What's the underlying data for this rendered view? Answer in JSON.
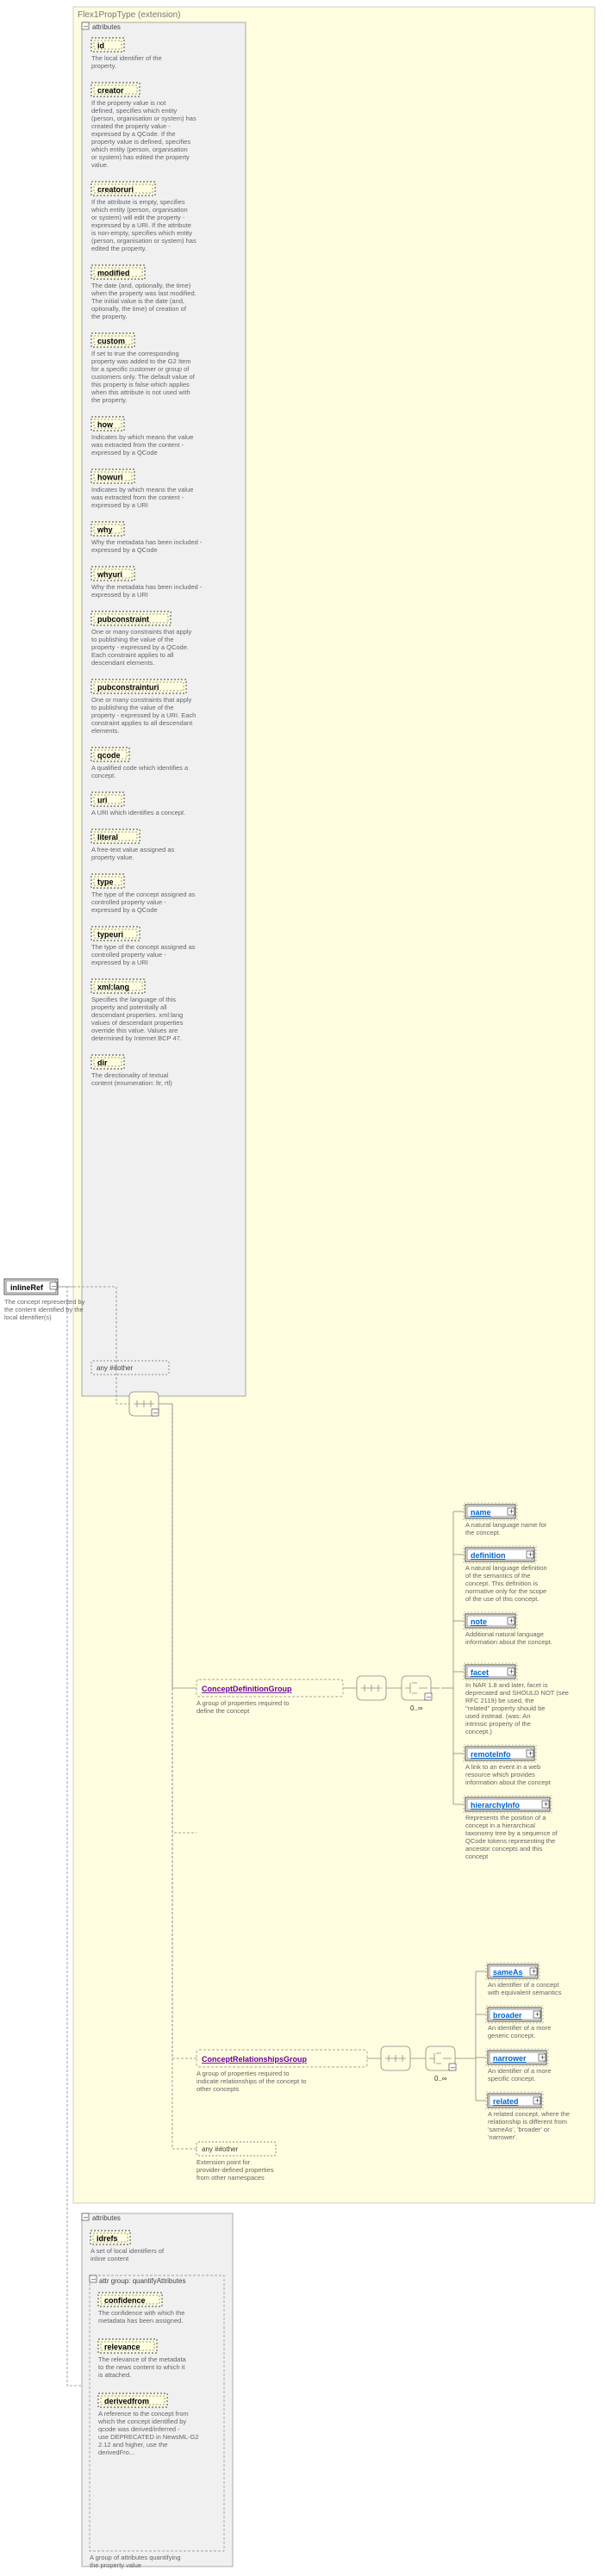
{
  "root": {
    "label": "inlineRef",
    "desc": "The concept represented by the content identified by the local identifier(s)"
  },
  "header": {
    "type": "Flex1PropType (extension)"
  },
  "attrHeader": "attributes",
  "attrs": [
    {
      "name": "id",
      "desc": "The local identifier of the property."
    },
    {
      "name": "creator",
      "desc": "If the property value is not defined, specifies which entity (person, organisation or system) has created the property value - expressed by a QCode. If the property value is defined, specifies which entity (person, organisation or system) has edited the property value."
    },
    {
      "name": "creatoruri",
      "desc": "If the attribute is empty, specifies which entity (person, organisation or system) will edit the property - expressed by a URI. If the attribute is non-empty, specifies which entity (person, organisation or system) has edited the property."
    },
    {
      "name": "modified",
      "desc": "The date (and, optionally, the time) when the property was last modified. The initial value is the date (and, optionally, the time) of creation of the property."
    },
    {
      "name": "custom",
      "desc": "If set to true the corresponding property was added to the G2 Item for a specific customer or group of customers only. The default value of this property is false which applies when this attribute is not used with the property."
    },
    {
      "name": "how",
      "desc": "Indicates by which means the value was extracted from the content - expressed by a QCode"
    },
    {
      "name": "howuri",
      "desc": "Indicates by which means the value was extracted from the content - expressed by a URI"
    },
    {
      "name": "why",
      "desc": "Why the metadata has been included - expressed by a QCode"
    },
    {
      "name": "whyuri",
      "desc": "Why the metadata has been included - expressed by a URI"
    },
    {
      "name": "pubconstraint",
      "desc": "One or many constraints that apply to publishing the value of the property - expressed by a QCode. Each constraint applies to all descendant elements."
    },
    {
      "name": "pubconstrainturi",
      "desc": "One or many constraints that apply to publishing the value of the property - expressed by a URI. Each constraint applies to all descendant elements."
    },
    {
      "name": "qcode",
      "desc": "A qualified code which identifies a concept."
    },
    {
      "name": "uri",
      "desc": "A URI which identifies a concept."
    },
    {
      "name": "literal",
      "desc": "A free-text value assigned as property value."
    },
    {
      "name": "type",
      "desc": "The type of the concept assigned as controlled property value - expressed by a QCode"
    },
    {
      "name": "typeuri",
      "desc": "The type of the concept assigned as controlled property value - expressed by a URI"
    },
    {
      "name": "xml:lang",
      "desc": "Specifies the language of this property and potentially all descendant properties. xml:lang values of descendant properties override this value. Values are determined by Internet BCP 47."
    },
    {
      "name": "dir",
      "desc": "The directionality of textual content (enumeration: ltr, rtl)"
    }
  ],
  "anyOther": "any ##other",
  "groups": [
    {
      "name": "ConceptDefinitionGroup",
      "desc": "A group of properties required to define the concept",
      "cardinal": "0..∞",
      "items": [
        {
          "name": "name",
          "desc": "A natural language name for the concept."
        },
        {
          "name": "definition",
          "desc": "A natural language definition of the semantics of the concept. This definition is normative only for the scope of the use of this concept."
        },
        {
          "name": "note",
          "desc": "Additional natural language information about the concept."
        },
        {
          "name": "facet",
          "desc": "In NAR 1.8 and later, facet is deprecated and SHOULD NOT (see RFC 2119) be used, the \"related\" property should be used instead. (was: An intrinsic property of the concept.)"
        },
        {
          "name": "remoteInfo",
          "desc": "A link to an event in a web resource which provides information about the concept"
        },
        {
          "name": "hierarchyInfo",
          "desc": "Represents the position of a concept in a hierarchical taxonomy tree by a sequence of QCode tokens representing the ancestor concepts and this concept"
        }
      ]
    },
    {
      "name": "ConceptRelationshipsGroup",
      "desc": "A group of properties required to indicate relationships of the concept to other concepts",
      "cardinal": "0..∞",
      "items": [
        {
          "name": "sameAs",
          "desc": "An identifier of a concept with equivalent semantics"
        },
        {
          "name": "broader",
          "desc": "An identifier of a more generic concept."
        },
        {
          "name": "narrower",
          "desc": "An identifier of a more specific concept."
        },
        {
          "name": "related",
          "desc": "A related concept, where the relationship is different from 'sameAs', 'broader' or 'narrower'."
        }
      ]
    }
  ],
  "extPoint": {
    "label": "any ##other",
    "desc": "Extension point for provider-defined properties from other namespaces"
  },
  "bottomBlock": {
    "header": "attributes",
    "idrefs": {
      "name": "idrefs",
      "desc": "A set of local identifiers of inline content"
    },
    "quant": {
      "header": "attr group: quantifyAttributes",
      "desc": "A group of attributes quantifying the property value",
      "items": [
        {
          "name": "confidence",
          "desc": "The confidence with which the metadata has been assigned."
        },
        {
          "name": "relevance",
          "desc": "The relevance of the metadata to the news content to which it is attached."
        },
        {
          "name": "derivedfrom",
          "desc": "A reference to the concept from which the concept identified by qcode was derived/inferred - use DEPRECATED in NewsML-G2 2.12 and higher, use the derivedFro..."
        }
      ]
    }
  }
}
